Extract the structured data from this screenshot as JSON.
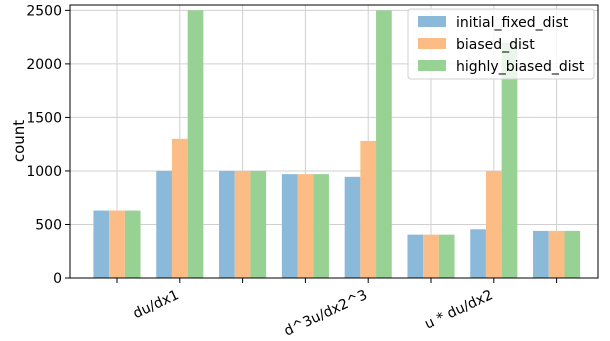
{
  "chart_data": {
    "type": "bar",
    "categories": [
      "",
      "du/dx1",
      "",
      "",
      "d^3u/dx2^3",
      "",
      "u * du/dx2",
      ""
    ],
    "series": [
      {
        "name": "initial_fixed_dist",
        "color": "#8bb9da",
        "values": [
          630,
          1000,
          1000,
          970,
          945,
          405,
          455,
          440
        ]
      },
      {
        "name": "biased_dist",
        "color": "#fbbc86",
        "values": [
          630,
          1300,
          1000,
          970,
          1280,
          405,
          1000,
          440
        ]
      },
      {
        "name": "highly_biased_dist",
        "color": "#97d194",
        "values": [
          630,
          2500,
          1000,
          970,
          2500,
          405,
          2200,
          440
        ]
      }
    ],
    "ylabel": "count",
    "xlabel": "",
    "ylim": [
      0,
      2550
    ],
    "yticks": [
      "0",
      "500",
      "1000",
      "1500",
      "2000",
      "2500"
    ],
    "grid": true,
    "legend_position": "top-right"
  }
}
